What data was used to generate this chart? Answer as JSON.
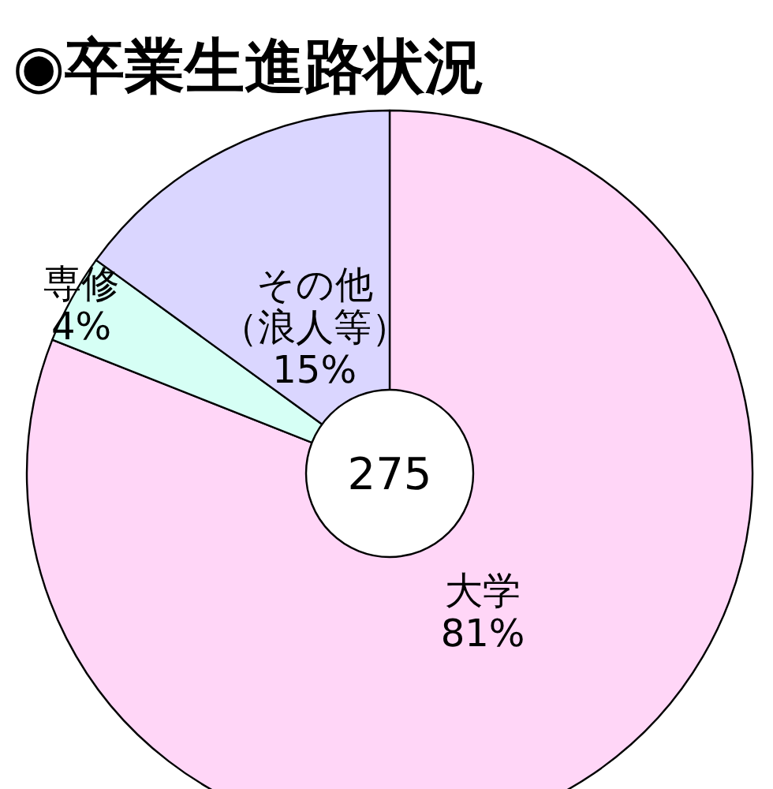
{
  "chart_data": {
    "type": "donut",
    "title": "◉卒業生進路状況",
    "categories": [
      "大学",
      "専修",
      "その他（浪人等）"
    ],
    "values": [
      81,
      4,
      15
    ],
    "value_labels": [
      "81%",
      "4%",
      "15%"
    ],
    "colors": [
      "#ffd6f7",
      "#d6fff5",
      "#dad6ff"
    ],
    "annotations": [
      "275"
    ]
  }
}
